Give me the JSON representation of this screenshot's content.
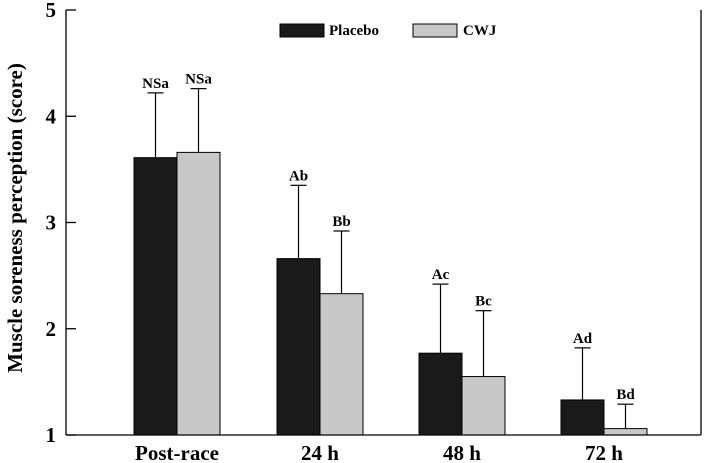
{
  "chart_data": {
    "type": "bar",
    "categories": [
      "Post-race",
      "24 h",
      "48 h",
      "72 h"
    ],
    "series": [
      {
        "name": "Placebo",
        "color": "#1a1a1a",
        "values": [
          3.61,
          2.66,
          1.77,
          1.33
        ],
        "errors": [
          0.61,
          0.69,
          0.65,
          0.49
        ],
        "labels": [
          "NSa",
          "Ab",
          "Ac",
          "Ad"
        ]
      },
      {
        "name": "CWJ",
        "color": "#c8c8c8",
        "values": [
          3.66,
          2.33,
          1.55,
          1.06
        ],
        "errors": [
          0.6,
          0.59,
          0.62,
          0.23
        ],
        "labels": [
          "NSa",
          "Bb",
          "Bc",
          "Bd"
        ]
      }
    ],
    "title": "",
    "xlabel": "",
    "ylabel": "Muscle soreness perception (score)",
    "ylim": [
      1,
      5
    ],
    "yticks": [
      1,
      2,
      3,
      4,
      5
    ],
    "grid": false,
    "legend": "top-center"
  }
}
